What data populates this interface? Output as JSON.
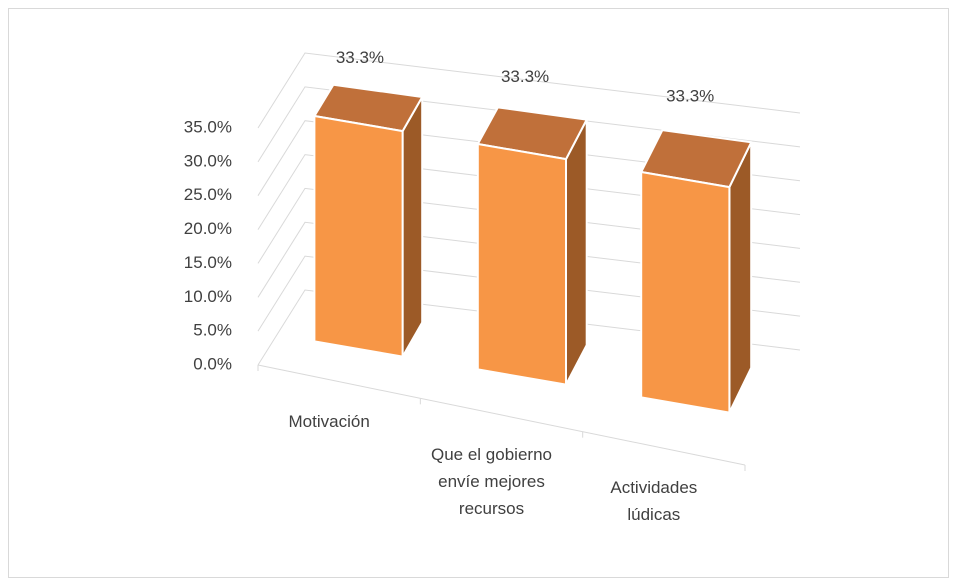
{
  "chart_data": {
    "type": "bar3d",
    "categories": [
      "Motivación",
      "Que el gobierno envíe  mejores recursos",
      "Actividades lúdicas"
    ],
    "values": [
      33.3,
      33.3,
      33.3
    ],
    "value_labels": [
      "33.3%",
      "33.3%",
      "33.3%"
    ],
    "color": "#f79646",
    "ylim": [
      0,
      35
    ],
    "yticks": [
      {
        "value": 0,
        "label": "0.0%"
      },
      {
        "value": 5,
        "label": "5.0%"
      },
      {
        "value": 10,
        "label": "10.0%"
      },
      {
        "value": 15,
        "label": "15.0%"
      },
      {
        "value": 20,
        "label": "20.0%"
      },
      {
        "value": 25,
        "label": "25.0%"
      },
      {
        "value": 30,
        "label": "30.0%"
      },
      {
        "value": 35,
        "label": "35.0%"
      }
    ],
    "grid": true
  }
}
